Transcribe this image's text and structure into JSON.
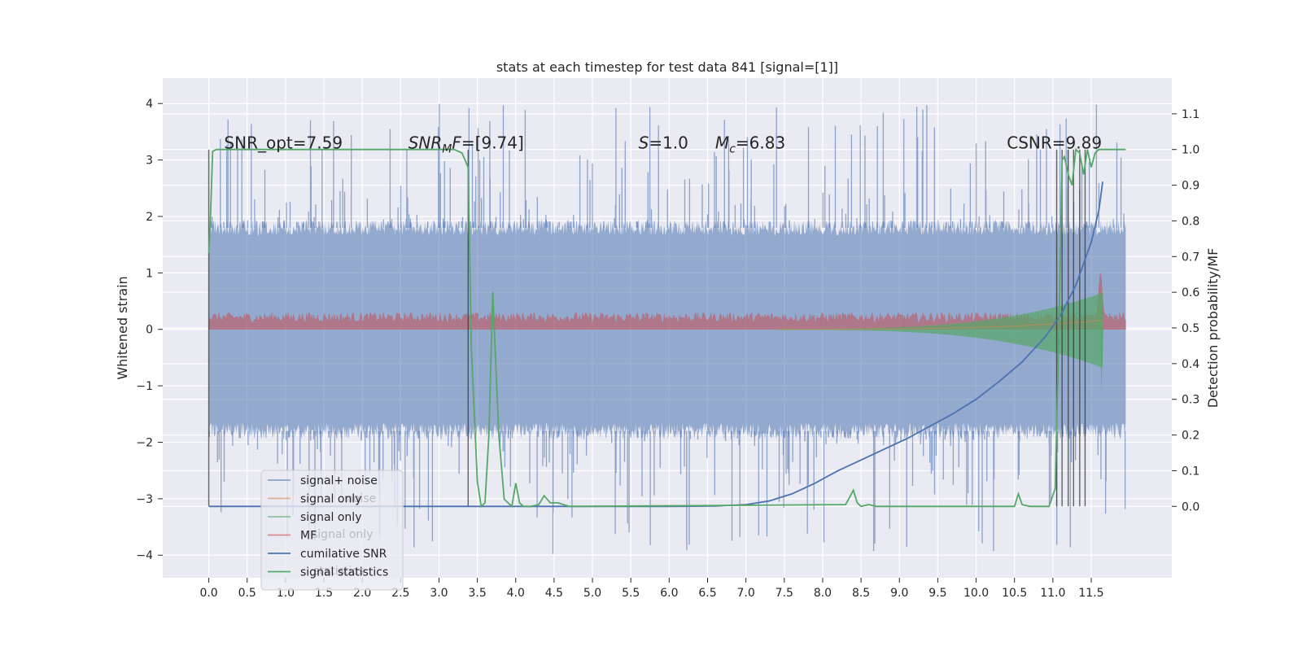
{
  "chart_data": {
    "type": "line",
    "title": "stats at each timestep for test data 841 [signal=[1]]",
    "ylabel": "Whitened strain",
    "y2label": "Detection probability/MF",
    "xlim": [
      -0.6,
      12.55
    ],
    "ylim": [
      -4.4,
      4.45
    ],
    "y2lim": [
      -0.2,
      1.2
    ],
    "grid": true,
    "legend_position": "bottom-left",
    "x_ticks": [
      0.0,
      0.5,
      1.0,
      1.5,
      2.0,
      2.5,
      3.0,
      3.5,
      4.0,
      4.5,
      5.0,
      5.5,
      6.0,
      6.5,
      7.0,
      7.5,
      8.0,
      8.5,
      9.0,
      9.5,
      10.0,
      10.5,
      11.0,
      11.5
    ],
    "x_tick_labels": [
      "0.0",
      "0.5",
      "1.0",
      "1.5",
      "2.0",
      "2.5",
      "3.0",
      "3.5",
      "4.0",
      "4.5",
      "5.0",
      "5.5",
      "6.0",
      "6.5",
      "7.0",
      "7.5",
      "8.0",
      "8.5",
      "9.0",
      "9.5",
      "10.0",
      "10.5",
      "11.0",
      "11.5"
    ],
    "y_ticks": [
      -4,
      -3,
      -2,
      -1,
      0,
      1,
      2,
      3,
      4
    ],
    "y_tick_labels": [
      "−4",
      "−3",
      "−2",
      "−1",
      "0",
      "1",
      "2",
      "3",
      "4"
    ],
    "y2_ticks": [
      0.0,
      0.1,
      0.2,
      0.3,
      0.4,
      0.5,
      0.6,
      0.7,
      0.8,
      0.9,
      1.0,
      1.1
    ],
    "y2_tick_labels": [
      "0.0",
      "0.1",
      "0.2",
      "0.3",
      "0.4",
      "0.5",
      "0.6",
      "0.7",
      "0.8",
      "0.9",
      "1.0",
      "1.1"
    ],
    "annotations": [
      {
        "id": "snr-opt",
        "text": "SNR_opt=7.59",
        "x": 0.2
      },
      {
        "id": "snr-mf",
        "prefix": "SNR",
        "sub": "M",
        "suffix": "F=[9.74]",
        "x": 2.6
      },
      {
        "id": "s-val",
        "prefix": "S",
        "suffix": "=1.0",
        "x": 5.6
      },
      {
        "id": "mc-val",
        "prefix": "M",
        "sub": "c",
        "suffix": "=6.83",
        "x": 6.6
      },
      {
        "id": "csnr",
        "text": "CSNR=9.89",
        "x": 10.4
      }
    ],
    "annotation_y": 3.2,
    "series": [
      {
        "name": "signal+ noise",
        "color": "#4c72b0",
        "axis": "left",
        "style": "noise-band",
        "t_end": 11.95,
        "envelope": 1.95,
        "spike_max": 4.1,
        "spike_min": -4.0
      },
      {
        "name": "signal only",
        "color": "#dd8452",
        "axis": "left",
        "style": "chirp",
        "t_start": 7.4,
        "t_end": 11.65,
        "peak_amplitude": 0.85
      },
      {
        "name": "signal only",
        "color": "#55a868",
        "axis": "left",
        "style": "chirp-fill",
        "t_start": 7.4,
        "t_end": 11.65,
        "peak_amplitude": 0.85
      },
      {
        "name": "MF",
        "color": "#c44e52",
        "axis": "left",
        "style": "mf-band",
        "t_end": 11.95,
        "upper": 0.25,
        "peak": 1.0,
        "peak_t": 11.62
      },
      {
        "name": "cumilative SNR",
        "color": "#4c72b0",
        "axis": "right",
        "x": [
          0.0,
          6.0,
          6.6,
          7.0,
          7.3,
          7.6,
          7.9,
          8.2,
          8.5,
          8.8,
          9.1,
          9.4,
          9.7,
          10.0,
          10.3,
          10.6,
          10.9,
          11.1,
          11.3,
          11.5,
          11.6,
          11.65
        ],
        "y": [
          0.0,
          0.0,
          0.001,
          0.005,
          0.015,
          0.035,
          0.065,
          0.1,
          0.13,
          0.16,
          0.19,
          0.225,
          0.26,
          0.3,
          0.35,
          0.405,
          0.475,
          0.535,
          0.62,
          0.74,
          0.83,
          0.91
        ]
      },
      {
        "name": "signal statistics",
        "color": "#55a868",
        "axis": "right",
        "x": [
          0.0,
          0.02,
          0.05,
          0.1,
          2.5,
          3.2,
          3.3,
          3.38,
          3.42,
          3.5,
          3.55,
          3.6,
          3.65,
          3.7,
          3.78,
          3.85,
          3.95,
          4.0,
          4.05,
          4.1,
          4.2,
          4.3,
          4.37,
          4.45,
          4.55,
          4.7,
          4.8,
          8.3,
          8.4,
          8.45,
          8.5,
          8.6,
          8.7,
          9.0,
          10.5,
          10.55,
          10.6,
          10.7,
          10.95,
          11.03,
          11.08,
          11.12,
          11.15,
          11.2,
          11.25,
          11.3,
          11.35,
          11.4,
          11.45,
          11.5,
          11.55,
          11.6,
          11.65,
          11.75,
          11.95
        ],
        "y": [
          0.71,
          0.8,
          0.995,
          1.0,
          1.0,
          1.0,
          0.99,
          0.95,
          0.45,
          0.07,
          0.0,
          0.01,
          0.2,
          0.6,
          0.2,
          0.02,
          0.0,
          0.065,
          0.01,
          0.0,
          0.0,
          0.005,
          0.03,
          0.01,
          0.01,
          0.0,
          0.0,
          0.005,
          0.045,
          0.01,
          0.0,
          0.005,
          0.0,
          0.0,
          0.0,
          0.035,
          0.005,
          0.0,
          0.0,
          0.05,
          0.5,
          0.97,
          0.98,
          0.93,
          0.9,
          1.0,
          0.99,
          0.93,
          1.0,
          0.95,
          0.99,
          1.0,
          1.0,
          1.0,
          1.0
        ]
      }
    ],
    "threshold_crossings": [
      0.0,
      3.38,
      11.05,
      11.12,
      11.2,
      11.27,
      11.35,
      11.42
    ],
    "legend_entries": [
      {
        "label": "signal+ noise",
        "color": "#4c72b0",
        "alpha": 0.6
      },
      {
        "label": "signal only",
        "color": "#dd8452",
        "alpha": 0.6
      },
      {
        "label": "signal only",
        "color": "#55a868",
        "alpha": 0.6
      },
      {
        "label": "MF",
        "color": "#c44e52",
        "alpha": 0.6
      },
      {
        "label": "cumilative SNR",
        "color": "#4c72b0",
        "alpha": 1.0
      },
      {
        "label": "signal statistics",
        "color": "#55a868",
        "alpha": 1.0
      }
    ],
    "legend_ghost_entries": [
      "noise",
      "signal only",
      "statistics"
    ]
  }
}
